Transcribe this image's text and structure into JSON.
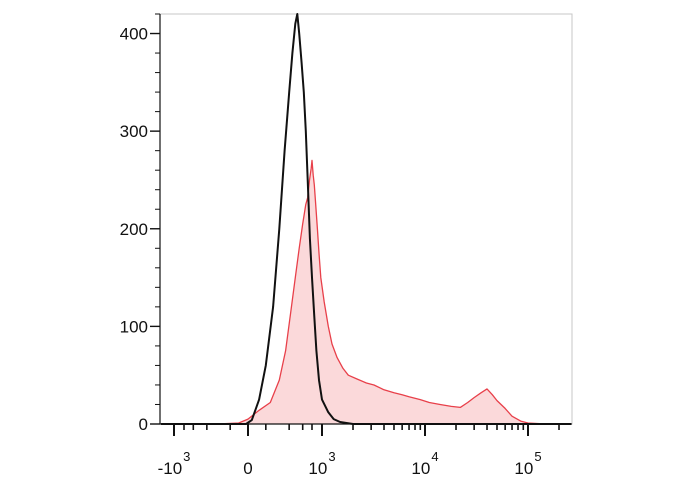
{
  "chart_data": {
    "type": "area",
    "xscale": "biexponential",
    "ylim": [
      0,
      420
    ],
    "yticks": [
      {
        "value": 0,
        "label": "0"
      },
      {
        "value": 100,
        "label": "100"
      },
      {
        "value": 200,
        "label": "200"
      },
      {
        "value": 300,
        "label": "300"
      },
      {
        "value": 400,
        "label": "400"
      }
    ],
    "xticks": [
      {
        "value": -1000,
        "base": "-10",
        "exp": "3"
      },
      {
        "value": 0,
        "base": "0",
        "exp": ""
      },
      {
        "value": 1000,
        "base": "10",
        "exp": "3"
      },
      {
        "value": 10000,
        "base": "10",
        "exp": "4"
      },
      {
        "value": 100000,
        "base": "10",
        "exp": "5"
      }
    ],
    "series": [
      {
        "color": "#e8404a",
        "fill": "#fbd9da",
        "points": [
          [
            -1500,
            0
          ],
          [
            -200,
            0
          ],
          [
            -50,
            1
          ],
          [
            0,
            5
          ],
          [
            60,
            14
          ],
          [
            130,
            22
          ],
          [
            200,
            45
          ],
          [
            260,
            75
          ],
          [
            320,
            115
          ],
          [
            380,
            150
          ],
          [
            440,
            180
          ],
          [
            500,
            205
          ],
          [
            560,
            225
          ],
          [
            600,
            232
          ],
          [
            640,
            250
          ],
          [
            680,
            262
          ],
          [
            700,
            270
          ],
          [
            730,
            255
          ],
          [
            760,
            245
          ],
          [
            800,
            225
          ],
          [
            850,
            200
          ],
          [
            900,
            175
          ],
          [
            960,
            150
          ],
          [
            1050,
            125
          ],
          [
            1150,
            100
          ],
          [
            1250,
            82
          ],
          [
            1400,
            68
          ],
          [
            1600,
            57
          ],
          [
            1800,
            50
          ],
          [
            2200,
            46
          ],
          [
            2700,
            42
          ],
          [
            3200,
            40
          ],
          [
            4000,
            35
          ],
          [
            5000,
            32
          ],
          [
            6000,
            30
          ],
          [
            7000,
            28
          ],
          [
            9000,
            25
          ],
          [
            11000,
            22
          ],
          [
            14000,
            20
          ],
          [
            18000,
            18
          ],
          [
            22000,
            17
          ],
          [
            26000,
            22
          ],
          [
            30000,
            27
          ],
          [
            35000,
            32
          ],
          [
            40000,
            36
          ],
          [
            45000,
            30
          ],
          [
            50000,
            24
          ],
          [
            60000,
            16
          ],
          [
            70000,
            8
          ],
          [
            85000,
            3
          ],
          [
            100000,
            1
          ],
          [
            150000,
            0
          ],
          [
            400000,
            0
          ]
        ]
      },
      {
        "color": "#111111",
        "points": [
          [
            -1500,
            0
          ],
          [
            -10,
            0
          ],
          [
            20,
            4
          ],
          [
            60,
            25
          ],
          [
            100,
            60
          ],
          [
            150,
            120
          ],
          [
            200,
            200
          ],
          [
            250,
            280
          ],
          [
            300,
            340
          ],
          [
            340,
            380
          ],
          [
            380,
            410
          ],
          [
            410,
            420
          ],
          [
            440,
            400
          ],
          [
            480,
            370
          ],
          [
            520,
            340
          ],
          [
            560,
            300
          ],
          [
            600,
            250
          ],
          [
            650,
            190
          ],
          [
            700,
            150
          ],
          [
            760,
            110
          ],
          [
            820,
            75
          ],
          [
            900,
            45
          ],
          [
            1000,
            25
          ],
          [
            1150,
            12
          ],
          [
            1300,
            5
          ],
          [
            1500,
            2
          ],
          [
            2000,
            0
          ],
          [
            400000,
            0
          ]
        ]
      }
    ]
  }
}
